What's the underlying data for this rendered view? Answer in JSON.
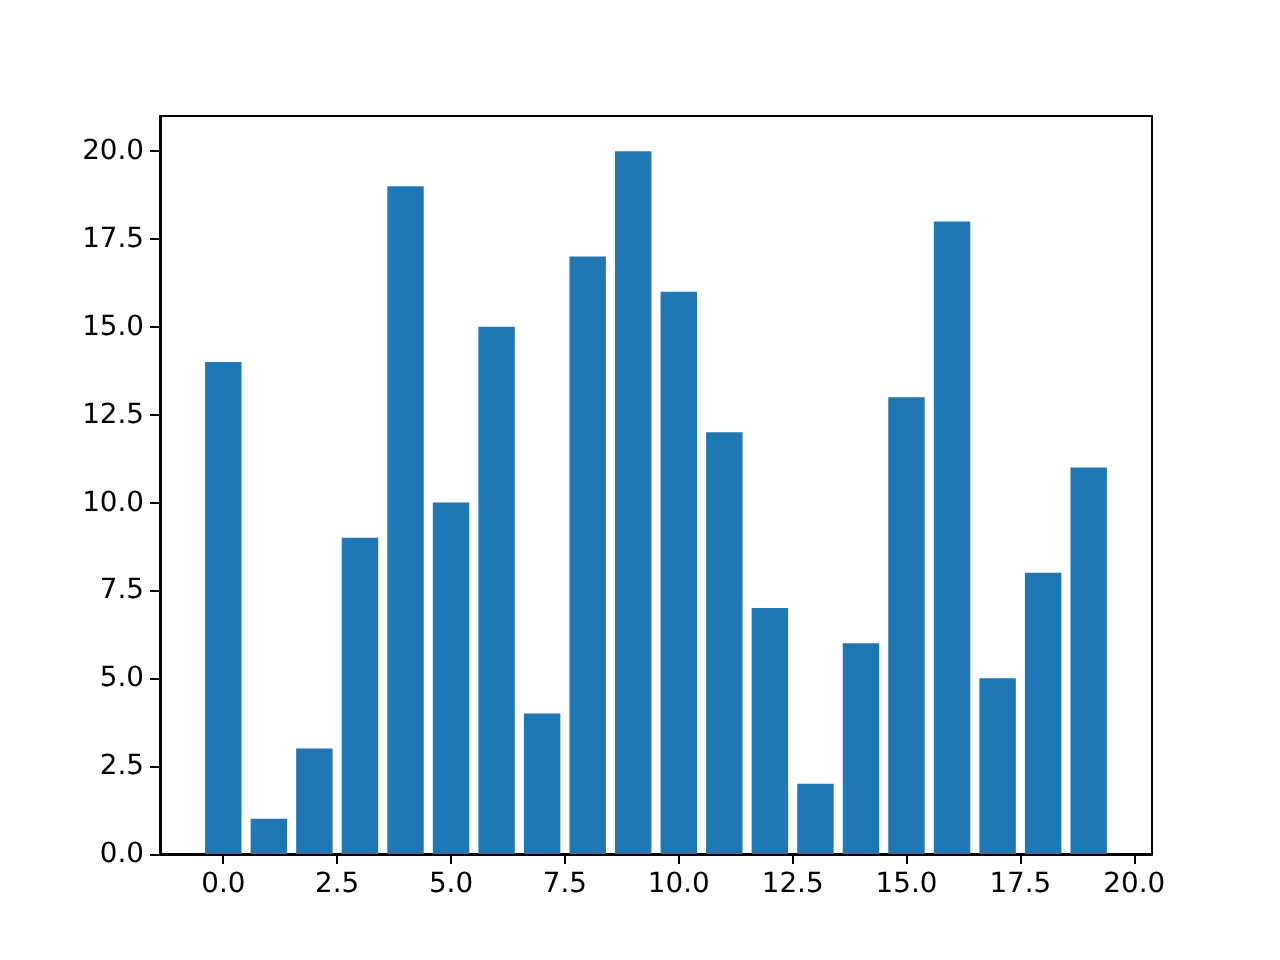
{
  "chart_data": {
    "type": "bar",
    "x": [
      0,
      1,
      2,
      3,
      4,
      5,
      6,
      7,
      8,
      9,
      10,
      11,
      12,
      13,
      14,
      15,
      16,
      17,
      18,
      19
    ],
    "values": [
      14,
      1,
      3,
      9,
      19,
      10,
      15,
      4,
      17,
      20,
      16,
      12,
      7,
      2,
      6,
      13,
      18,
      5,
      8,
      11
    ],
    "color": "#1f77b4",
    "xlim": [
      -1.39,
      20.39
    ],
    "xticks": [
      {
        "value": 0,
        "label": "0.0"
      },
      {
        "value": 2.5,
        "label": "2.5"
      },
      {
        "value": 5,
        "label": "5.0"
      },
      {
        "value": 7.5,
        "label": "7.5"
      },
      {
        "value": 10,
        "label": "10.0"
      },
      {
        "value": 12.5,
        "label": "12.5"
      },
      {
        "value": 15,
        "label": "15.0"
      },
      {
        "value": 17.5,
        "label": "17.5"
      },
      {
        "value": 20,
        "label": "20.0"
      }
    ],
    "ylim": [
      0,
      21
    ],
    "yticks": [
      {
        "value": 0,
        "label": "0.0"
      },
      {
        "value": 2.5,
        "label": "2.5"
      },
      {
        "value": 5,
        "label": "5.0"
      },
      {
        "value": 7.5,
        "label": "7.5"
      },
      {
        "value": 10,
        "label": "10.0"
      },
      {
        "value": 12.5,
        "label": "12.5"
      },
      {
        "value": 15,
        "label": "15.0"
      },
      {
        "value": 17.5,
        "label": "17.5"
      },
      {
        "value": 20,
        "label": "20.0"
      }
    ]
  }
}
